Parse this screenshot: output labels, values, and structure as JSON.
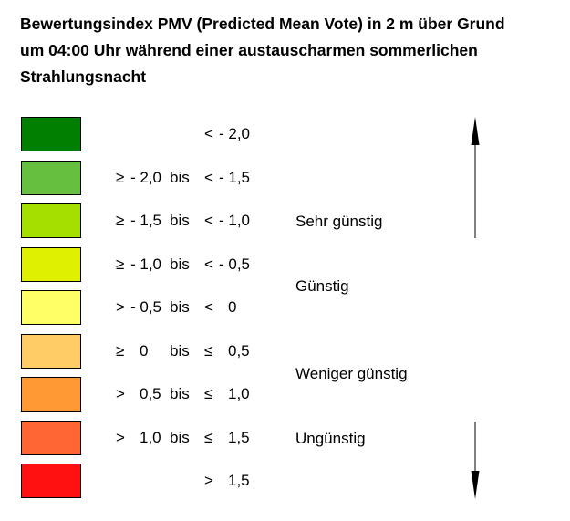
{
  "title": {
    "line1": "Bewertungsindex PMV (Predicted Mean Vote) in 2 m über Grund",
    "line2": "um 04:00 Uhr während einer austauscharmen sommerlichen",
    "line3": "Strahlungsnacht"
  },
  "legend": {
    "rows": [
      {
        "color": "#007f00",
        "op1": "",
        "v1": "",
        "mid": "",
        "op2": "<",
        "v2": "- 2,0"
      },
      {
        "color": "#66bf3f",
        "op1": "≥",
        "v1": "- 2,0",
        "mid": "bis",
        "op2": "<",
        "v2": "- 1,5"
      },
      {
        "color": "#a5df00",
        "op1": "≥",
        "v1": "- 1,5",
        "mid": "bis",
        "op2": "<",
        "v2": "- 1,0"
      },
      {
        "color": "#dff000",
        "op1": "≥",
        "v1": "- 1,0",
        "mid": "bis",
        "op2": "<",
        "v2": "- 0,5"
      },
      {
        "color": "#ffff66",
        "op1": ">",
        "v1": "- 0,5",
        "mid": "bis",
        "op2": "<",
        "v2": "0"
      },
      {
        "color": "#ffcc66",
        "op1": "≥",
        "v1": "0",
        "mid": "bis",
        "op2": "≤",
        "v2": "0,5"
      },
      {
        "color": "#ff9933",
        "op1": ">",
        "v1": "0,5",
        "mid": "bis",
        "op2": "≤",
        "v2": "1,0"
      },
      {
        "color": "#ff6633",
        "op1": ">",
        "v1": "1,0",
        "mid": "bis",
        "op2": "≤",
        "v2": "1,5"
      },
      {
        "color": "#ff1111",
        "op1": "",
        "v1": "",
        "mid": "",
        "op2": ">",
        "v2": "1,5"
      }
    ]
  },
  "categories": {
    "sehr_guenstig": "Sehr günstig",
    "guenstig": "Günstig",
    "weniger_guenstig": "Weniger günstig",
    "unguenstig": "Ungünstig"
  },
  "arrows": {
    "up": "arrow-up-icon",
    "down": "arrow-down-icon"
  }
}
